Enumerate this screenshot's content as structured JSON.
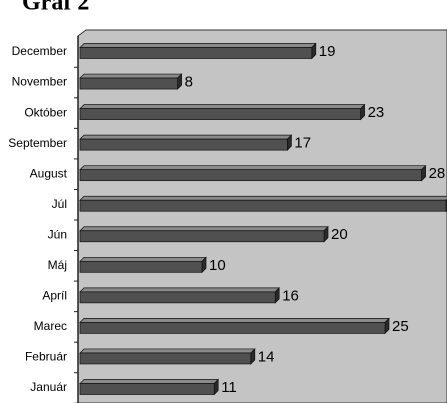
{
  "chart_data": {
    "type": "bar",
    "orientation": "horizontal",
    "title": "Graf 2",
    "categories": [
      "Január",
      "Február",
      "Marec",
      "Apríl",
      "Máj",
      "Jún",
      "Júl",
      "August",
      "September",
      "Október",
      "November",
      "December"
    ],
    "values": [
      11,
      14,
      25,
      16,
      10,
      20,
      30,
      28,
      17,
      23,
      8,
      19
    ],
    "color": "#505050",
    "xlim": [
      0,
      30
    ]
  }
}
